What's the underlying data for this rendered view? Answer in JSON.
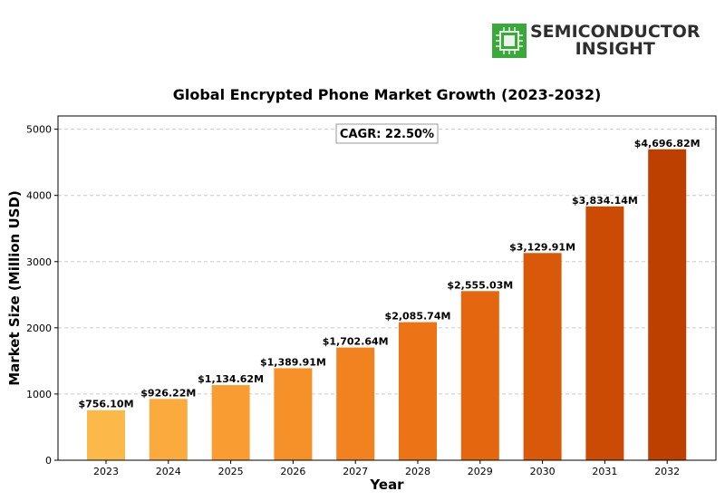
{
  "brand": {
    "line1": "SEMICONDUCTOR",
    "line2": "INSIGHT",
    "logo_icon": "chip-icon",
    "accent": "#3aa83a"
  },
  "chart_data": {
    "type": "bar",
    "title": "Global Encrypted Phone Market Growth (2023-2032)",
    "xlabel": "Year",
    "ylabel": "Market Size (Million USD)",
    "ylim": [
      0,
      5200
    ],
    "yticks": [
      0,
      1000,
      2000,
      3000,
      4000,
      5000
    ],
    "grid": "horizontal dashed",
    "annotation": "CAGR: 22.50%",
    "categories": [
      "2023",
      "2024",
      "2025",
      "2026",
      "2027",
      "2028",
      "2029",
      "2030",
      "2031",
      "2032"
    ],
    "values": [
      756.1,
      926.22,
      1134.62,
      1389.91,
      1702.64,
      2085.74,
      2555.03,
      3129.91,
      3834.14,
      4696.82
    ],
    "labels": [
      "$756.10M",
      "$926.22M",
      "$1,134.62M",
      "$1,389.91M",
      "$1,702.64M",
      "$2,085.74M",
      "$2,555.03M",
      "$3,129.91M",
      "$3,834.14M",
      "$4,696.82M"
    ],
    "colors": [
      "#fdb84a",
      "#fbab3e",
      "#f99d33",
      "#f69029",
      "#f2821f",
      "#ec7416",
      "#e4660f",
      "#d95809",
      "#cc4b04",
      "#bd4001"
    ]
  }
}
